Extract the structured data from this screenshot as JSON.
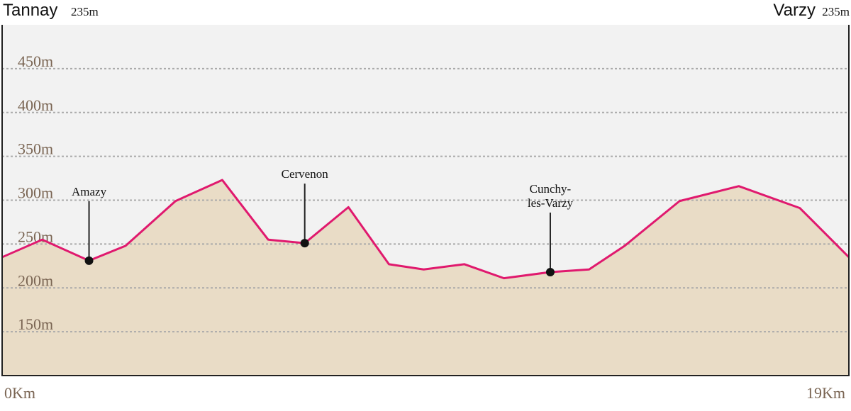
{
  "chart_data": {
    "type": "area",
    "start": {
      "name": "Tannay",
      "elevation": {
        "value": 235,
        "label": "235m"
      }
    },
    "end": {
      "name": "Varzy",
      "elevation": {
        "value": 235,
        "label": "235m"
      }
    },
    "x": [
      0,
      0.9,
      1.95,
      2.77,
      3.89,
      4.94,
      5.97,
      6.79,
      7.77,
      8.68,
      9.46,
      10.37,
      11.26,
      12.3,
      13.17,
      13.97,
      15.2,
      16.53,
      17.9,
      19
    ],
    "values": [
      235,
      255,
      231,
      248,
      299,
      323,
      255,
      251,
      292,
      227,
      221,
      227,
      211,
      218,
      221,
      248,
      299,
      316,
      291,
      235
    ],
    "color": "#e0196e",
    "fill": "#e9dcc6",
    "annotations": [
      {
        "lines": [
          "Amazy"
        ],
        "x": 1.95,
        "y": 231
      },
      {
        "lines": [
          "Cervenon"
        ],
        "x": 6.79,
        "y": 251
      },
      {
        "lines": [
          "Cunchy-",
          "les-Varzy"
        ],
        "x": 12.3,
        "y": 218
      }
    ],
    "xlim": [
      0,
      19
    ],
    "xticks": [
      {
        "value": 0,
        "label": "0Km"
      },
      {
        "value": 19,
        "label": "19Km"
      }
    ],
    "ylim": [
      100,
      500
    ],
    "yticks": [
      {
        "value": 150,
        "label": "150m"
      },
      {
        "value": 200,
        "label": "200m"
      },
      {
        "value": 250,
        "label": "250m"
      },
      {
        "value": 300,
        "label": "300m"
      },
      {
        "value": 350,
        "label": "350m"
      },
      {
        "value": 400,
        "label": "400m"
      },
      {
        "value": 450,
        "label": "450m"
      }
    ],
    "grid": true
  }
}
